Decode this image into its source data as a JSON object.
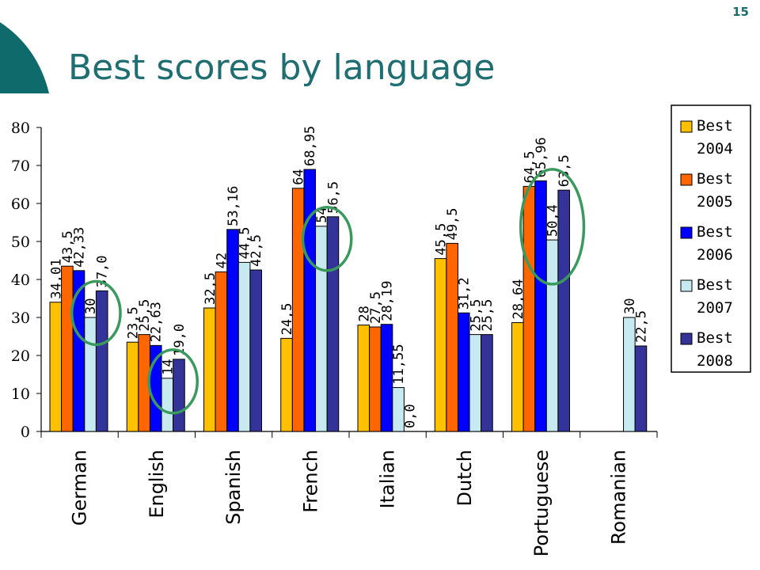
{
  "slide": {
    "number": "15",
    "title": "Best scores by language"
  },
  "colors": {
    "title": "#1f6e72",
    "deco": "#0f6b6b",
    "highlight": "#3a9a5e"
  },
  "chart_data": {
    "type": "bar",
    "title": "",
    "xlabel": "",
    "ylabel": "",
    "ylim": [
      0,
      80
    ],
    "yticks": [
      0,
      10,
      20,
      30,
      40,
      50,
      60,
      70,
      80
    ],
    "grid": false,
    "legend_position": "right",
    "categories": [
      "German",
      "English",
      "Spanish",
      "French",
      "Italian",
      "Dutch",
      "Portuguese",
      "Romanian"
    ],
    "series": [
      {
        "name": "Best 2004",
        "color": "#ffc000",
        "values": [
          34.01,
          23.5,
          32.5,
          24.5,
          28,
          45.5,
          28.64,
          null
        ],
        "labels": [
          "34,01",
          "23,5",
          "32,5",
          "24,5",
          "28",
          "45,5",
          "28,64",
          ""
        ]
      },
      {
        "name": "Best 2005",
        "color": "#ff6600",
        "values": [
          43.5,
          25.5,
          42,
          64,
          27.5,
          49.5,
          64.5,
          null
        ],
        "labels": [
          "43,5",
          "25,5",
          "42",
          "64",
          "27,5",
          "49,5",
          "64,5",
          ""
        ]
      },
      {
        "name": "Best 2006",
        "color": "#0000ff",
        "values": [
          42.33,
          22.63,
          53.16,
          68.95,
          28.19,
          31.2,
          65.96,
          null
        ],
        "labels": [
          "42,33",
          "22,63",
          "53,16",
          "68,95",
          "28,19",
          "31,2",
          "65,96",
          ""
        ]
      },
      {
        "name": "Best 2007",
        "color": "#c6eaf0",
        "values": [
          30,
          14,
          44.5,
          54,
          11.55,
          25.5,
          50.4,
          30
        ],
        "labels": [
          "30",
          "14",
          "44,5",
          "54",
          "11,55",
          "25,5",
          "50,4",
          "30"
        ]
      },
      {
        "name": "Best 2008",
        "color": "#333399",
        "values": [
          37.0,
          19.0,
          42.5,
          56.5,
          0.0,
          25.5,
          63.5,
          22.5
        ],
        "labels": [
          "37,0",
          "19,0",
          "42,5",
          "56,5",
          "0,0",
          "25,5",
          "63,5",
          "22,5"
        ]
      }
    ],
    "highlight_ellipses": [
      {
        "category": "German",
        "series": [
          "Best 2007",
          "Best 2008"
        ]
      },
      {
        "category": "English",
        "series": [
          "Best 2007",
          "Best 2008"
        ]
      },
      {
        "category": "French",
        "series": [
          "Best 2007",
          "Best 2008"
        ]
      },
      {
        "category": "Portuguese",
        "series": [
          "Best 2006",
          "Best 2007",
          "Best 2008"
        ]
      }
    ]
  }
}
